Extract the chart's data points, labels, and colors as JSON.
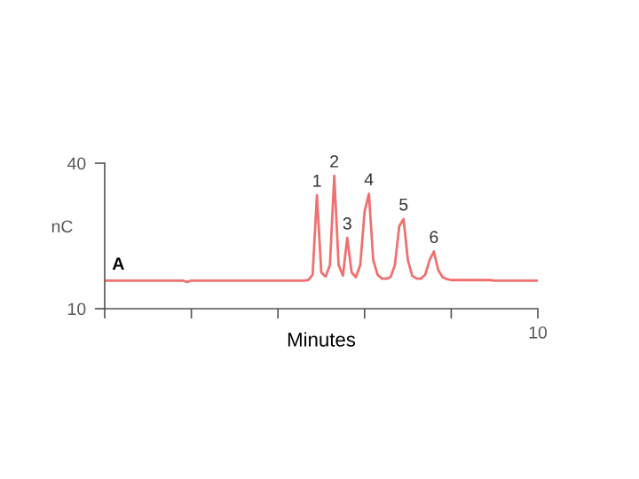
{
  "chart_data": {
    "type": "line",
    "xlabel": "Minutes",
    "ylabel": "nC",
    "categories": [
      null,
      null,
      null,
      null,
      null,
      null,
      null,
      null,
      null,
      null,
      null,
      null,
      null,
      null,
      null,
      null,
      null,
      null,
      null,
      null,
      null,
      null,
      null,
      null,
      null,
      null,
      null,
      null,
      null,
      null,
      null,
      null,
      null,
      null,
      null,
      null,
      null,
      null,
      null,
      null,
      null,
      null,
      null,
      null,
      null,
      null,
      null,
      null,
      null,
      null,
      null,
      null,
      null,
      null,
      null,
      null,
      null,
      null,
      null,
      null,
      null,
      null,
      null,
      null,
      null,
      null,
      null,
      null,
      null,
      null,
      null,
      null,
      null,
      null,
      null,
      null,
      null,
      null,
      null,
      null,
      null,
      null,
      null,
      null,
      null,
      null,
      null,
      null,
      null,
      null,
      null,
      null,
      null,
      null,
      null,
      null,
      null,
      null,
      null,
      null,
      null
    ],
    "series": [
      {
        "color": "#f07070",
        "values": [
          15.8,
          15.8,
          15.8,
          15.8,
          15.8,
          15.8,
          15.8,
          15.8,
          15.8,
          15.8,
          15.8,
          15.8,
          15.8,
          15.8,
          15.8,
          15.8,
          15.8,
          15.8,
          15.8,
          15.5,
          15.8,
          15.8,
          15.8,
          15.8,
          15.8,
          15.8,
          15.8,
          15.8,
          15.8,
          15.8,
          15.8,
          15.8,
          15.8,
          15.8,
          15.8,
          15.8,
          15.8,
          15.8,
          15.8,
          15.8,
          15.8,
          15.8,
          15.8,
          15.8,
          15.8,
          15.8,
          15.8,
          15.9,
          17,
          33.4,
          17.5,
          16.6,
          19,
          37.4,
          19,
          16.8,
          24.6,
          17.5,
          16.5,
          19,
          30,
          33.7,
          20,
          17,
          16.2,
          16.2,
          16.5,
          19,
          27,
          28.5,
          20,
          16.8,
          16.2,
          16.2,
          17,
          20,
          21.8,
          18,
          16.5,
          16.1,
          15.9,
          15.9,
          15.9,
          15.9,
          15.9,
          15.9,
          15.9,
          15.9,
          15.9,
          15.9,
          15.8,
          15.8,
          15.8,
          15.8,
          15.8,
          15.8,
          15.8,
          15.8,
          15.8,
          15.8,
          15.8
        ]
      }
    ],
    "ylim": [
      10,
      40
    ],
    "yticks": [
      10,
      40
    ],
    "annotations": [
      "10",
      "A",
      {
        "text": "1",
        "y": 33.4
      },
      {
        "text": "2",
        "y": 37.4
      },
      {
        "text": "3",
        "y": 24.6
      },
      {
        "text": "4",
        "y": 33.7
      },
      {
        "text": "5",
        "y": 28.5
      },
      {
        "text": "6",
        "y": 21.8
      }
    ],
    "grid": false,
    "marker": "none",
    "line_style": "solid"
  }
}
